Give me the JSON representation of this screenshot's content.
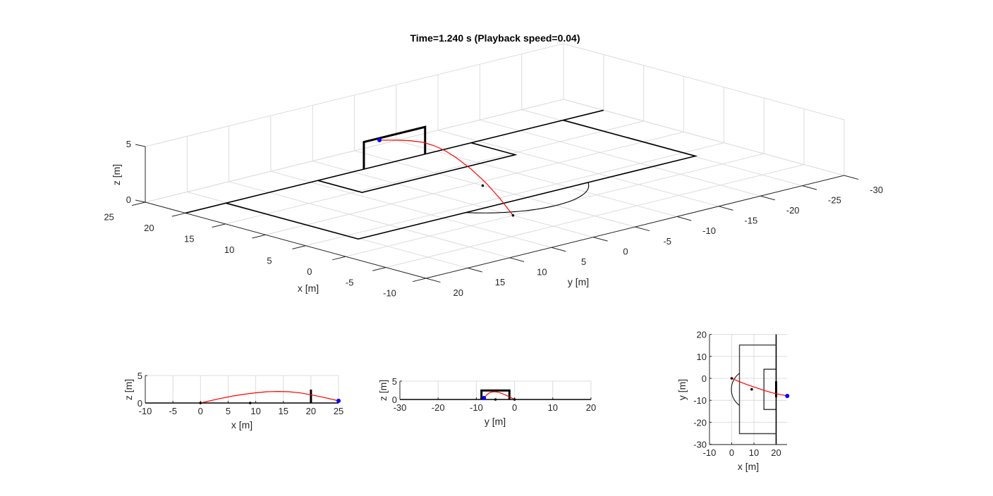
{
  "figure": {
    "title": "Time=1.240 s (Playback speed=0.04)"
  },
  "chart_data": [
    {
      "type": "line",
      "name": "3d-view",
      "title": "Time=1.240 s (Playback speed=0.04)",
      "xlabel": "x [m]",
      "ylabel": "y [m]",
      "zlabel": "z [m]",
      "xlim": [
        -10,
        25
      ],
      "ylim": [
        -30,
        20
      ],
      "zlim": [
        0,
        5
      ],
      "xticks": [
        "-10",
        "-5",
        "0",
        "5",
        "10",
        "15",
        "20",
        "25"
      ],
      "yticks": [
        "-30",
        "-25",
        "-20",
        "-15",
        "-10",
        "-5",
        "0",
        "5",
        "10",
        "15",
        "20"
      ],
      "zticks": [
        "0",
        "5"
      ],
      "grid": true,
      "series": [
        {
          "name": "ball trajectory",
          "color": "#ff0000",
          "x": [
            0,
            3,
            6,
            9,
            12,
            14,
            16,
            18,
            20,
            22,
            25
          ],
          "y": [
            0,
            -1.3,
            -2.5,
            -3.6,
            -4.6,
            -5.3,
            -5.9,
            -6.5,
            -7.0,
            -7.4,
            -8.0
          ],
          "z": [
            0,
            0.7,
            1.3,
            1.75,
            2.05,
            2.1,
            2.05,
            1.85,
            1.5,
            1.1,
            0.4
          ]
        },
        {
          "name": "ball current position",
          "color": "#0000ff",
          "x": [
            25
          ],
          "y": [
            -8
          ],
          "z": [
            0.4
          ]
        },
        {
          "name": "kick point",
          "color": "#000000",
          "x": [
            0
          ],
          "y": [
            0
          ],
          "z": [
            0
          ]
        },
        {
          "name": "penalty spot",
          "color": "#000000",
          "x": [
            9
          ],
          "y": [
            -5
          ],
          "z": [
            0
          ]
        }
      ],
      "field": {
        "goal_line_x": 20,
        "goal": {
          "y": [
            -8.66,
            -1.34
          ],
          "height": 2.44
        },
        "penalty_area": {
          "x": [
            3.5,
            20
          ],
          "y": [
            -25.16,
            15.16
          ]
        },
        "goal_area": {
          "x": [
            14.5,
            20
          ],
          "y": [
            -14.16,
            4.16
          ]
        },
        "penalty_arc": {
          "center": [
            9,
            -5
          ],
          "radius": 9.15
        }
      }
    },
    {
      "type": "line",
      "name": "side-view-xz",
      "xlabel": "x [m]",
      "ylabel": "z [m]",
      "xlim": [
        -10,
        25
      ],
      "ylim": [
        0,
        5
      ],
      "xticks": [
        "-10",
        "-5",
        "0",
        "5",
        "10",
        "15",
        "20",
        "25"
      ],
      "yticks": [
        "0",
        "5"
      ],
      "grid": true
    },
    {
      "type": "line",
      "name": "front-view-yz",
      "xlabel": "y [m]",
      "ylabel": "z [m]",
      "xlim": [
        -30,
        20
      ],
      "ylim": [
        0,
        5
      ],
      "xticks": [
        "-30",
        "-20",
        "-10",
        "0",
        "10",
        "20"
      ],
      "yticks": [
        "0",
        "5"
      ],
      "grid": true
    },
    {
      "type": "line",
      "name": "top-view-xy",
      "xlabel": "x [m]",
      "ylabel": "y [m]",
      "xlim": [
        -10,
        25
      ],
      "ylim": [
        -30,
        20
      ],
      "xticks": [
        "-10",
        "0",
        "10",
        "20"
      ],
      "yticks": [
        "-30",
        "-20",
        "-10",
        "0",
        "10",
        "20"
      ],
      "grid": true
    }
  ],
  "colors": {
    "trajectory": "#ff0000",
    "ball": "#0000ff",
    "lines": "#000000",
    "grid": "#dcdcdc"
  }
}
